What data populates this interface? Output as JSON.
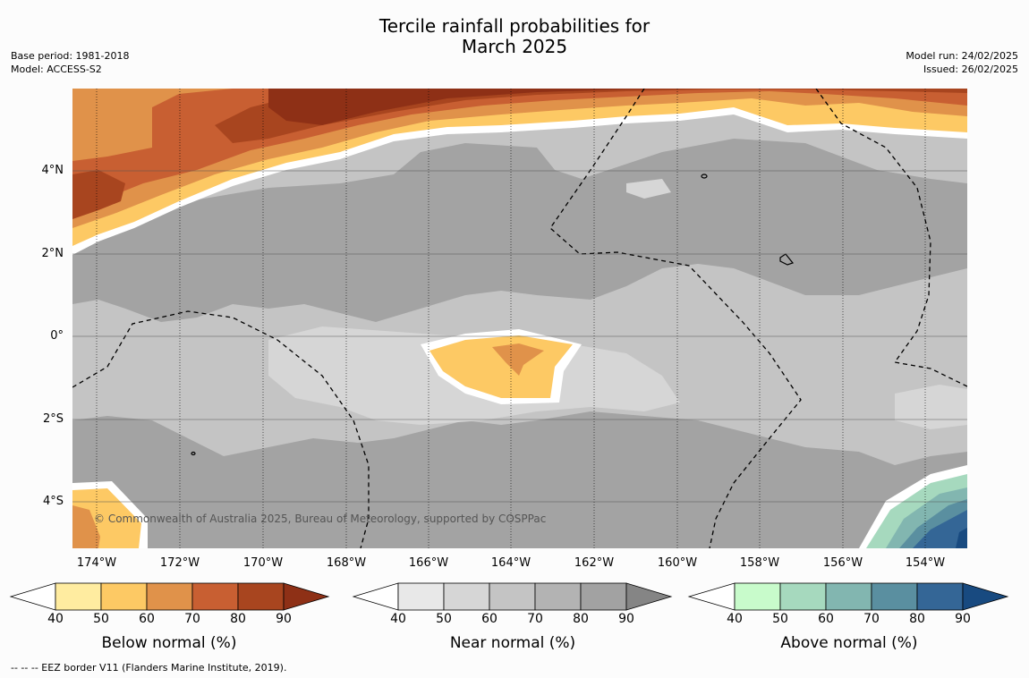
{
  "title": {
    "line1": "Tercile rainfall probabilities for",
    "line2": "March 2025"
  },
  "meta_left": {
    "base_period": "Base period: 1981-2018",
    "model": "Model: ACCESS-S2"
  },
  "meta_right": {
    "model_run": "Model run: 24/02/2025",
    "issued": "Issued: 26/02/2025"
  },
  "map": {
    "latitude_labels": [
      "4°N",
      "2°N",
      "0°",
      "2°S",
      "4°S"
    ],
    "longitude_labels": [
      "174°W",
      "172°W",
      "170°W",
      "168°W",
      "166°W",
      "164°W",
      "162°W",
      "160°W",
      "158°W",
      "156°W",
      "154°W"
    ],
    "copyright": "© Commonwealth of Australia 2025, Bureau of Meteorology, supported by COSPPac"
  },
  "colorbars": [
    {
      "name": "below",
      "title": "Below normal (%)",
      "ticks": [
        "40",
        "50",
        "60",
        "70",
        "80",
        "90"
      ],
      "colors": [
        "#ffeca0",
        "#fdc964",
        "#e0924a",
        "#c85f32",
        "#a8451f",
        "#8e3016"
      ]
    },
    {
      "name": "near",
      "title": "Near normal (%)",
      "ticks": [
        "40",
        "50",
        "60",
        "70",
        "80",
        "90"
      ],
      "colors": [
        "#e8e8e8",
        "#d6d6d6",
        "#c4c4c4",
        "#b3b3b3",
        "#a2a2a2",
        "#858585"
      ]
    },
    {
      "name": "above",
      "title": "Above normal (%)",
      "ticks": [
        "40",
        "50",
        "60",
        "70",
        "80",
        "90"
      ],
      "colors": [
        "#c8fbcb",
        "#a6d9be",
        "#82b6b0",
        "#5a8fa0",
        "#346696",
        "#184a80"
      ]
    }
  ],
  "eez_note": "--  --  -- EEZ border V11 (Flanders Marine Institute, 2019)."
}
